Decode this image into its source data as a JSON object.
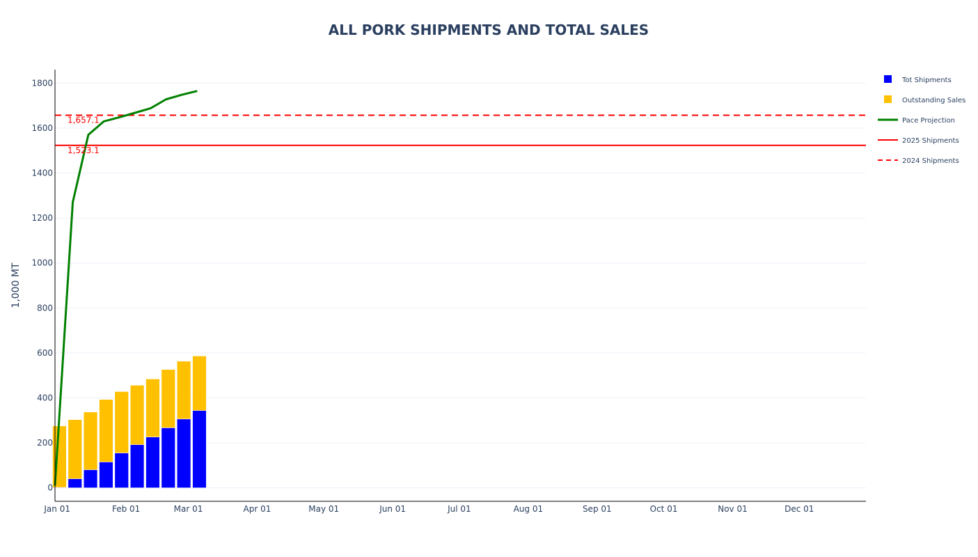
{
  "chart_data": {
    "type": "bar",
    "title": "ALL PORK SHIPMENTS AND TOTAL SALES",
    "ylabel": "1,000 MT",
    "xlabel": "",
    "ylim": [
      -60,
      1860
    ],
    "x_domain": [
      "2024-12-31",
      "2025-12-31"
    ],
    "yticks": [
      0,
      200,
      400,
      600,
      800,
      1000,
      1200,
      1400,
      1600,
      1800
    ],
    "xticks": [
      {
        "date": "2025-01-01",
        "label": "Jan 01"
      },
      {
        "date": "2025-02-01",
        "label": "Feb 01"
      },
      {
        "date": "2025-03-01",
        "label": "Mar 01"
      },
      {
        "date": "2025-04-01",
        "label": "Apr 01"
      },
      {
        "date": "2025-05-01",
        "label": "May 01"
      },
      {
        "date": "2025-06-01",
        "label": "Jun 01"
      },
      {
        "date": "2025-07-01",
        "label": "Jul 01"
      },
      {
        "date": "2025-08-01",
        "label": "Aug 01"
      },
      {
        "date": "2025-09-01",
        "label": "Sep 01"
      },
      {
        "date": "2025-10-01",
        "label": "Oct 01"
      },
      {
        "date": "2025-11-01",
        "label": "Nov 01"
      },
      {
        "date": "2025-12-01",
        "label": "Dec 01"
      }
    ],
    "grid": true,
    "legend_position": "top-right",
    "x": [
      "2025-01-02",
      "2025-01-09",
      "2025-01-16",
      "2025-01-23",
      "2025-01-30",
      "2025-02-06",
      "2025-02-13",
      "2025-02-20",
      "2025-02-27",
      "2025-03-06"
    ],
    "series": [
      {
        "name": "Tot Shipments",
        "type": "bar",
        "color": "#0000ff",
        "values": [
          2,
          40,
          80,
          115,
          155,
          192,
          226,
          267,
          306,
          344
        ]
      },
      {
        "name": "Outstanding Sales",
        "type": "bar",
        "color": "#ffc000",
        "values": [
          273,
          263,
          257,
          278,
          273,
          264,
          258,
          259,
          257,
          242
        ]
      },
      {
        "name": "Pace Projection",
        "type": "line",
        "color": "#008000",
        "x": [
          "2024-12-31",
          "2025-01-08",
          "2025-01-15",
          "2025-01-22",
          "2025-01-29",
          "2025-02-05",
          "2025-02-12",
          "2025-02-19",
          "2025-02-26",
          "2025-03-05"
        ],
        "values": [
          10,
          1270,
          1570,
          1630,
          1648,
          1668,
          1688,
          1728,
          1748,
          1765
        ]
      },
      {
        "name": "2025 Shipments",
        "type": "hline",
        "color": "#ff0000",
        "dash": "solid",
        "value": 1523.1
      },
      {
        "name": "2024 Shipments",
        "type": "hline",
        "color": "#ff0000",
        "dash": "dash",
        "value": 1657.1
      }
    ],
    "annotations": [
      {
        "text": "1,657.1",
        "y": 1657.1
      },
      {
        "text": "1,523.1",
        "y": 1523.1
      }
    ]
  }
}
